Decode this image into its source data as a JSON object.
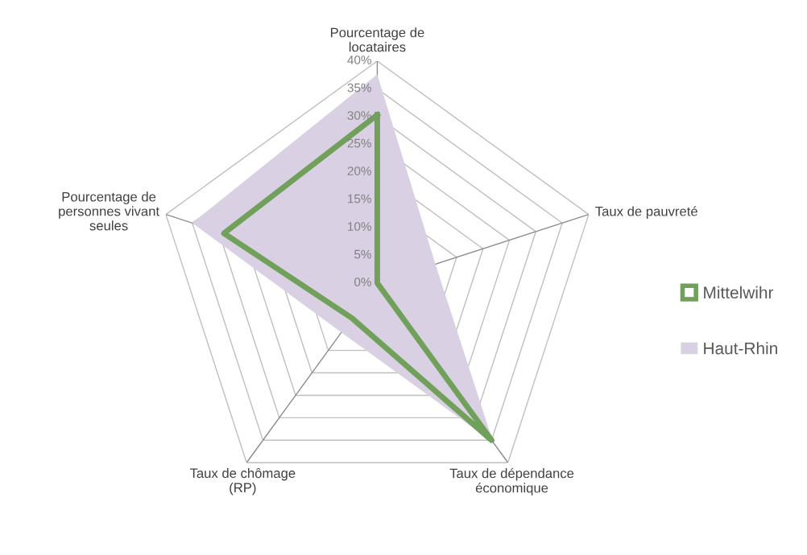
{
  "chart_data": {
    "type": "radar",
    "categories": [
      "Pourcentage de locataires",
      "Taux de pauvreté",
      "Taux de dépendance économique",
      "Taux de chômage (RP)",
      "Pourcentage de personnes vivant seules"
    ],
    "series": [
      {
        "name": "Mittelwihr",
        "color": "#70a05a",
        "values": [
          30.3,
          0,
          35,
          7.8,
          29
        ]
      },
      {
        "name": "Haut-Rhin",
        "type": "area",
        "color": "#d9d0e3",
        "values": [
          37.6,
          11,
          35.5,
          11,
          35
        ]
      }
    ],
    "ylim": [
      0,
      40
    ],
    "yticks": [
      {
        "value": 0,
        "label": "0%"
      },
      {
        "value": 5,
        "label": "5%"
      },
      {
        "value": 10,
        "label": "10%"
      },
      {
        "value": 15,
        "label": "15%"
      },
      {
        "value": 20,
        "label": "20%"
      },
      {
        "value": 25,
        "label": "25%"
      },
      {
        "value": 30,
        "label": "30%"
      },
      {
        "value": 35,
        "label": "35%"
      },
      {
        "value": 40,
        "label": "40%"
      }
    ],
    "grid": true,
    "legend": "right"
  }
}
